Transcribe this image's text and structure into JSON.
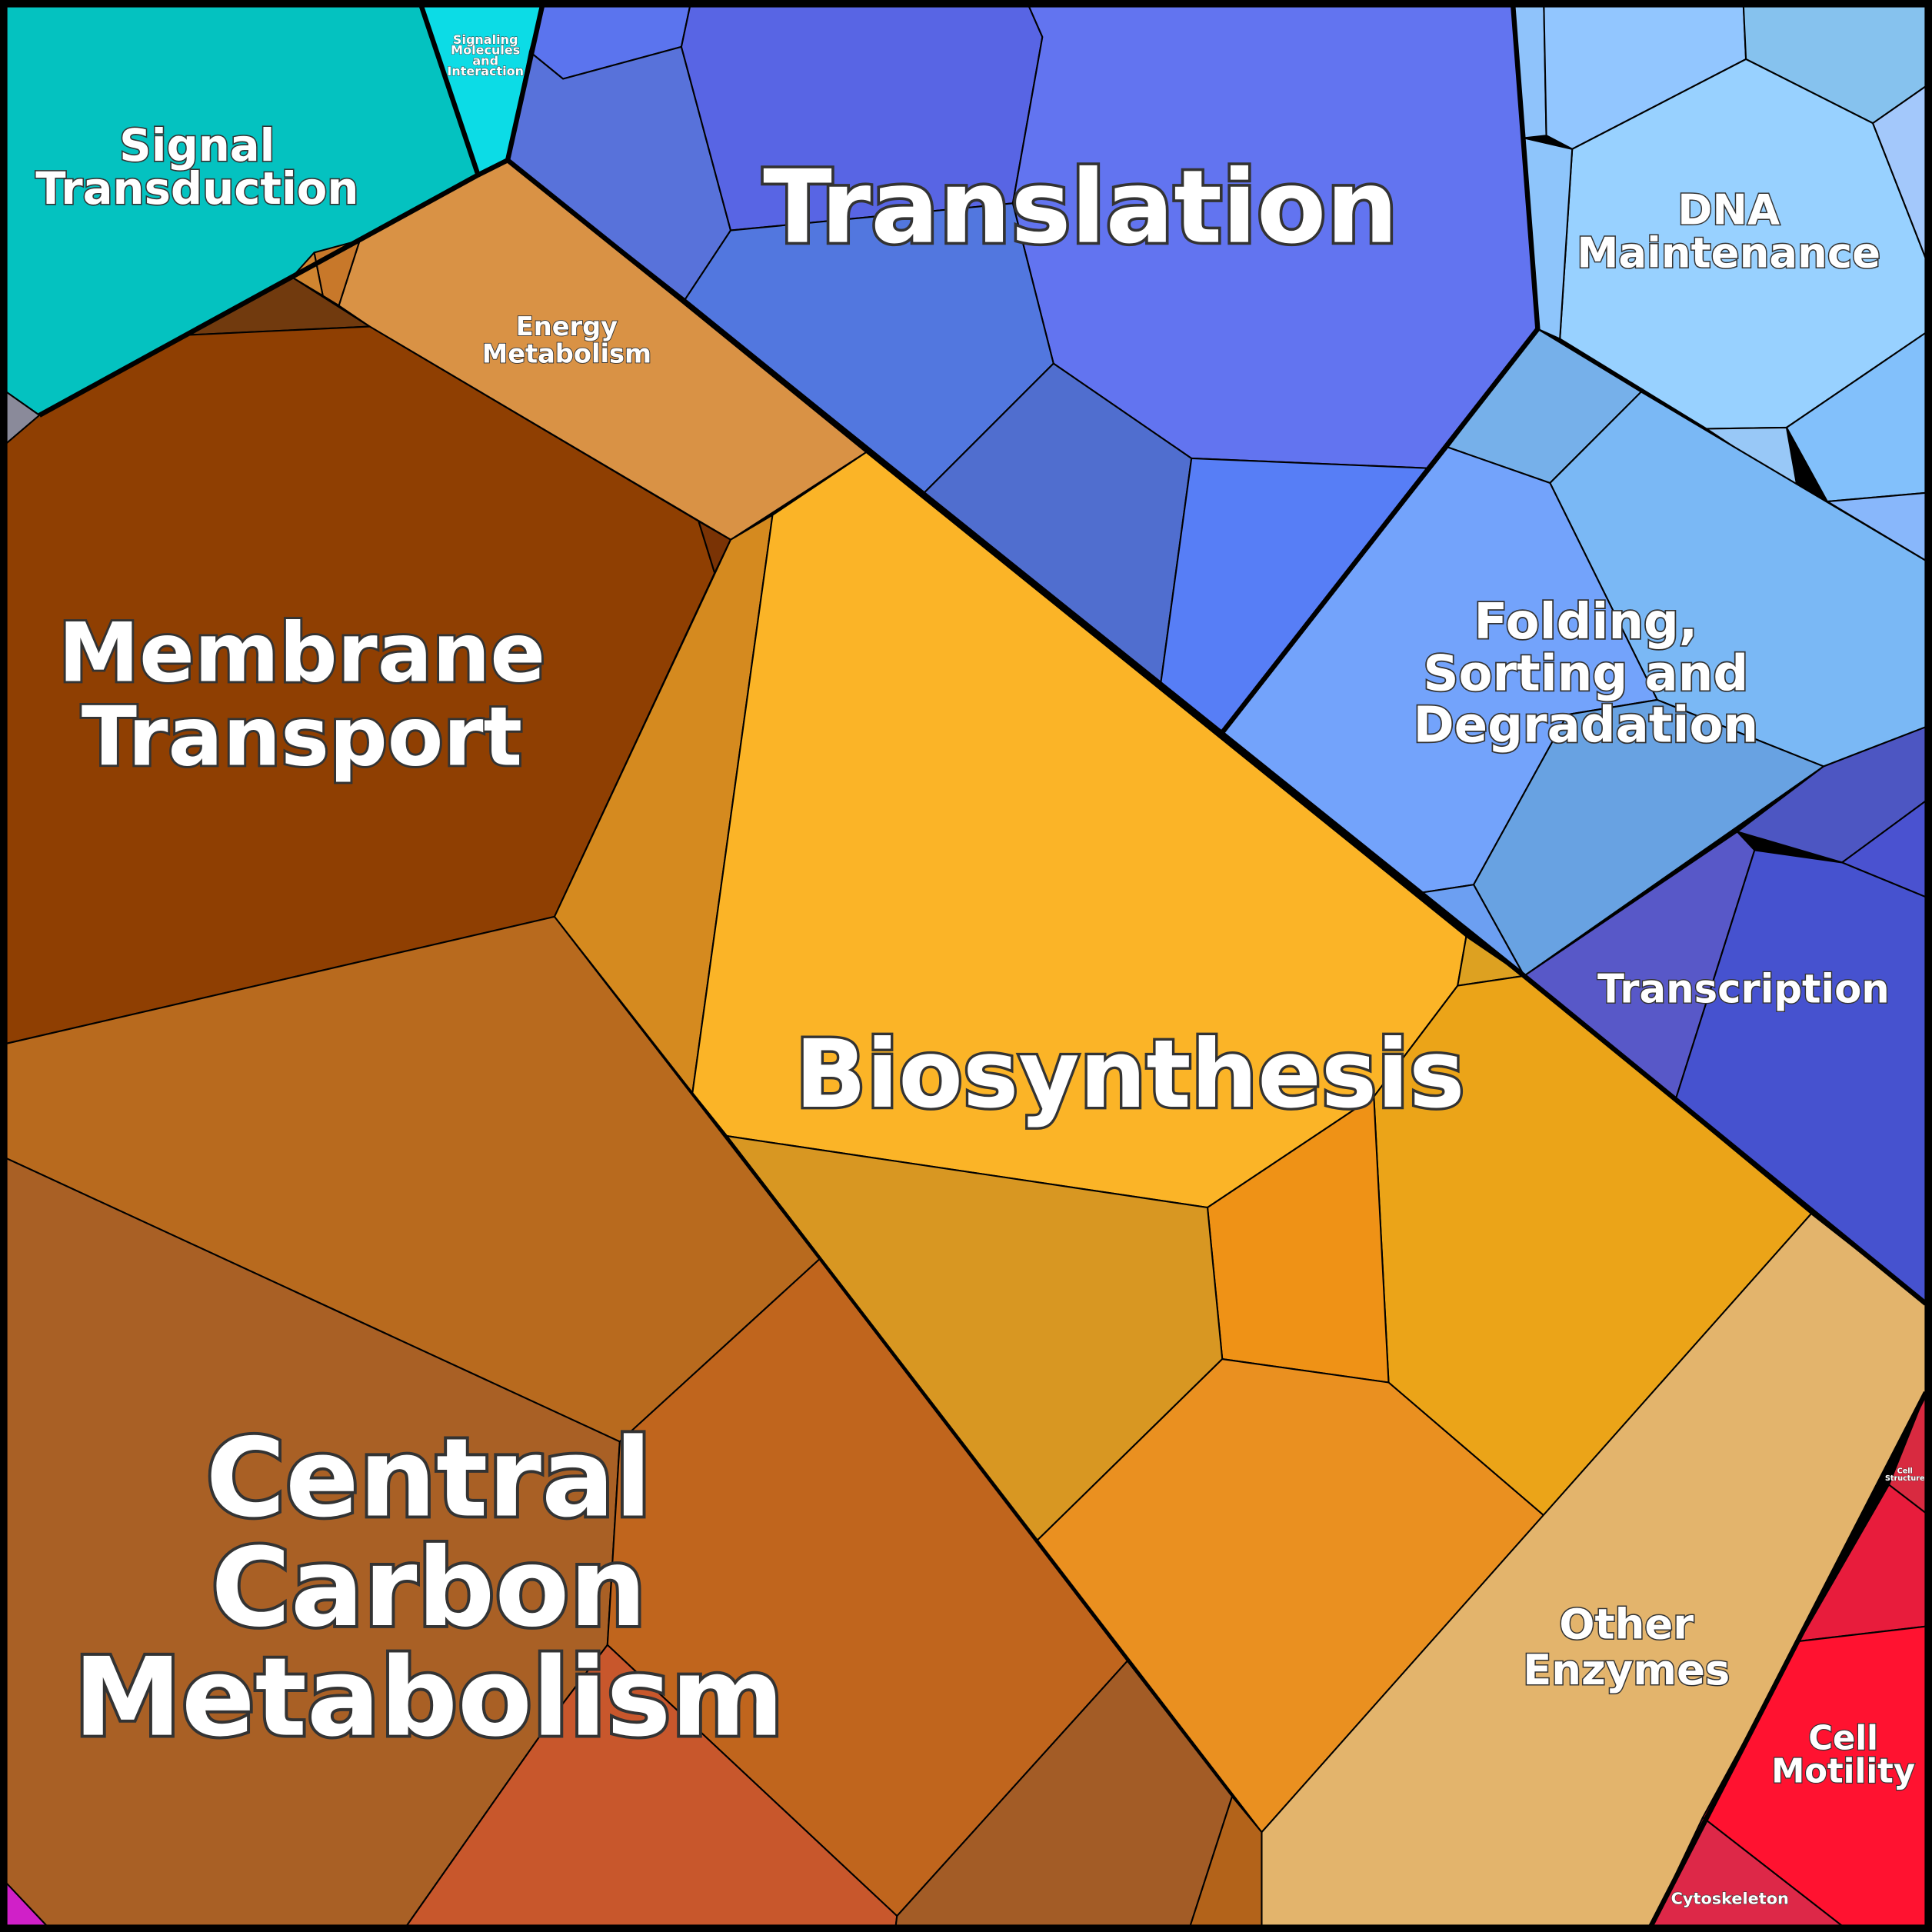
{
  "title": null,
  "labels": [
    {
      "lines": [
        "Translation"
      ]
    },
    {
      "lines": [
        "Biosynthesis"
      ]
    },
    {
      "lines": [
        "Central",
        "Carbon",
        "Metabolism"
      ]
    },
    {
      "lines": [
        "Membrane",
        "Transport"
      ]
    },
    {
      "lines": [
        "Signal",
        "Transduction"
      ]
    },
    {
      "lines": [
        "DNA",
        "Maintenance"
      ]
    },
    {
      "lines": [
        "Folding,",
        "Sorting and",
        "Degradation"
      ]
    },
    {
      "lines": [
        "Transcription"
      ]
    },
    {
      "lines": [
        "Other",
        "Enzymes"
      ]
    },
    {
      "lines": [
        "Cell",
        "Motility"
      ]
    },
    {
      "lines": [
        "Energy",
        "Metabolism"
      ]
    },
    {
      "lines": [
        "Signaling",
        "Molecules",
        "and",
        "Interaction"
      ]
    },
    {
      "lines": [
        "Cytoskeleton"
      ]
    },
    {
      "lines": [
        "Cell",
        "Structure"
      ]
    }
  ]
}
